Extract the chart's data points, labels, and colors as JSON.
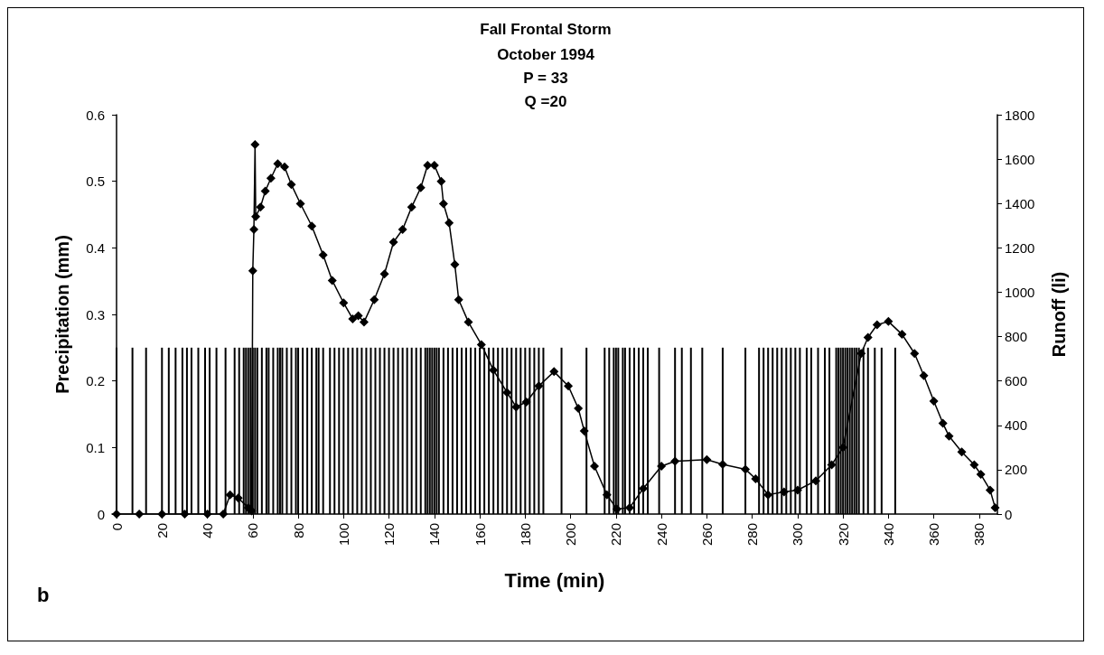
{
  "chart_data": {
    "type": "bar",
    "title": "Fall Frontal Storm",
    "subtitle": "October 1994\nP = 33\nQ =20",
    "xlabel": "Time (min)",
    "ylabel": "Precipitation (mm)",
    "y2label": "Runoff (li)",
    "annotations": [
      "b"
    ],
    "xlim": [
      -2,
      388
    ],
    "xticks": [
      0,
      20,
      40,
      60,
      80,
      100,
      120,
      140,
      160,
      180,
      200,
      220,
      240,
      260,
      280,
      300,
      320,
      340,
      360,
      380
    ],
    "ylim": [
      0,
      0.6
    ],
    "yticks": [
      0,
      0.1,
      0.2,
      0.3,
      0.4,
      0.5,
      0.6
    ],
    "y2lim": [
      0,
      1800
    ],
    "y2ticks": [
      0,
      200,
      400,
      600,
      800,
      1000,
      1200,
      1400,
      1600,
      1800
    ],
    "grid": false,
    "marker": "diamond",
    "series": [
      {
        "color": "#000000",
        "x": [
          0,
          7,
          13,
          20,
          23,
          26,
          29,
          31,
          33,
          36,
          39,
          41,
          44,
          48,
          52,
          54,
          56,
          57,
          58,
          59,
          60,
          61,
          62,
          64,
          66,
          67,
          69,
          71,
          72,
          73,
          75,
          77,
          79,
          80,
          82,
          84,
          86,
          88,
          89,
          91,
          94,
          96,
          98,
          100,
          102,
          104,
          106,
          108,
          110,
          112,
          114,
          116,
          118,
          120,
          122,
          124,
          126,
          128,
          130,
          132,
          134,
          136,
          137,
          138,
          139,
          140,
          141,
          142,
          144,
          146,
          148,
          150,
          152,
          154,
          156,
          158,
          160,
          162,
          164,
          166,
          168,
          170,
          172,
          174,
          176,
          178,
          180,
          182,
          184,
          186,
          188,
          196,
          207,
          215,
          217,
          219,
          220,
          221,
          223,
          224,
          226,
          228,
          230,
          232,
          234,
          239,
          246,
          249,
          253,
          258,
          267,
          277,
          283,
          285,
          287,
          289,
          291,
          293,
          295,
          297,
          299,
          301,
          304,
          306,
          309,
          312,
          314,
          317,
          318,
          319,
          320,
          321,
          322,
          323,
          324,
          325,
          326,
          327,
          329,
          331,
          334,
          337,
          343
        ],
        "values": [
          0.25,
          0.25,
          0.25,
          0.25,
          0.25,
          0.25,
          0.25,
          0.25,
          0.25,
          0.25,
          0.25,
          0.25,
          0.25,
          0.25,
          0.25,
          0.25,
          0.25,
          0.25,
          0.25,
          0.25,
          0.25,
          0.25,
          0.25,
          0.25,
          0.25,
          0.25,
          0.25,
          0.25,
          0.25,
          0.25,
          0.25,
          0.25,
          0.25,
          0.25,
          0.25,
          0.25,
          0.25,
          0.25,
          0.25,
          0.25,
          0.25,
          0.25,
          0.25,
          0.25,
          0.25,
          0.25,
          0.25,
          0.25,
          0.25,
          0.25,
          0.25,
          0.25,
          0.25,
          0.25,
          0.25,
          0.25,
          0.25,
          0.25,
          0.25,
          0.25,
          0.25,
          0.25,
          0.25,
          0.25,
          0.25,
          0.25,
          0.25,
          0.25,
          0.25,
          0.25,
          0.25,
          0.25,
          0.25,
          0.25,
          0.25,
          0.25,
          0.25,
          0.25,
          0.25,
          0.25,
          0.25,
          0.25,
          0.25,
          0.25,
          0.25,
          0.25,
          0.25,
          0.25,
          0.25,
          0.25,
          0.25,
          0.25,
          0.25,
          0.25,
          0.25,
          0.25,
          0.25,
          0.25,
          0.25,
          0.25,
          0.25,
          0.25,
          0.25,
          0.25,
          0.25,
          0.25,
          0.25,
          0.25,
          0.25,
          0.25,
          0.25,
          0.25,
          0.25,
          0.25,
          0.25,
          0.25,
          0.25,
          0.25,
          0.25,
          0.25,
          0.25,
          0.25,
          0.25,
          0.25,
          0.25,
          0.25,
          0.25,
          0.25,
          0.25,
          0.25,
          0.25,
          0.25,
          0.25,
          0.25,
          0.25,
          0.25,
          0.25,
          0.25,
          0.25,
          0.25,
          0.25,
          0.25,
          0.25
        ]
      },
      {
        "type": "line",
        "axis": "y2",
        "color": "#000000",
        "x": [
          0,
          10,
          20,
          30,
          40,
          47,
          50,
          53.6,
          58,
          59.5,
          60,
          60.5,
          61,
          61.3,
          63.4,
          65.5,
          68,
          71,
          74,
          77,
          81,
          86,
          91,
          95,
          100,
          104,
          106.5,
          109,
          113.5,
          118,
          122,
          126,
          130,
          134,
          137,
          140,
          143,
          144,
          146.5,
          149,
          150.7,
          155,
          160.7,
          166,
          172,
          176,
          180.5,
          186,
          192.7,
          199,
          203.4,
          206,
          210.5,
          216,
          220.4,
          226,
          232,
          240,
          246,
          260,
          267,
          277,
          281.5,
          287,
          294,
          300,
          308,
          315,
          320,
          328,
          331,
          335,
          340,
          346,
          351.5,
          355.6,
          360,
          364,
          366.7,
          372.3,
          377.8,
          380.7,
          384.8,
          387
        ],
        "values": [
          0,
          0,
          0,
          0,
          0,
          0,
          87,
          72,
          29,
          14,
          1096,
          1283,
          1666,
          1341,
          1384,
          1456,
          1514,
          1579,
          1565,
          1485,
          1399,
          1298,
          1168,
          1053,
          952,
          880,
          894,
          865,
          966,
          1082,
          1226,
          1283,
          1384,
          1471,
          1572,
          1572,
          1500,
          1399,
          1312,
          1125,
          966,
          865,
          764,
          649,
          548,
          483,
          505,
          577,
          642,
          577,
          476,
          375,
          216,
          87,
          22,
          29,
          115,
          216,
          238,
          245,
          224,
          202,
          159,
          87,
          100,
          108,
          150,
          222,
          300,
          724,
          796,
          853,
          868,
          810,
          724,
          624,
          509,
          409,
          351,
          280,
          222,
          179,
          108,
          29
        ]
      }
    ]
  }
}
